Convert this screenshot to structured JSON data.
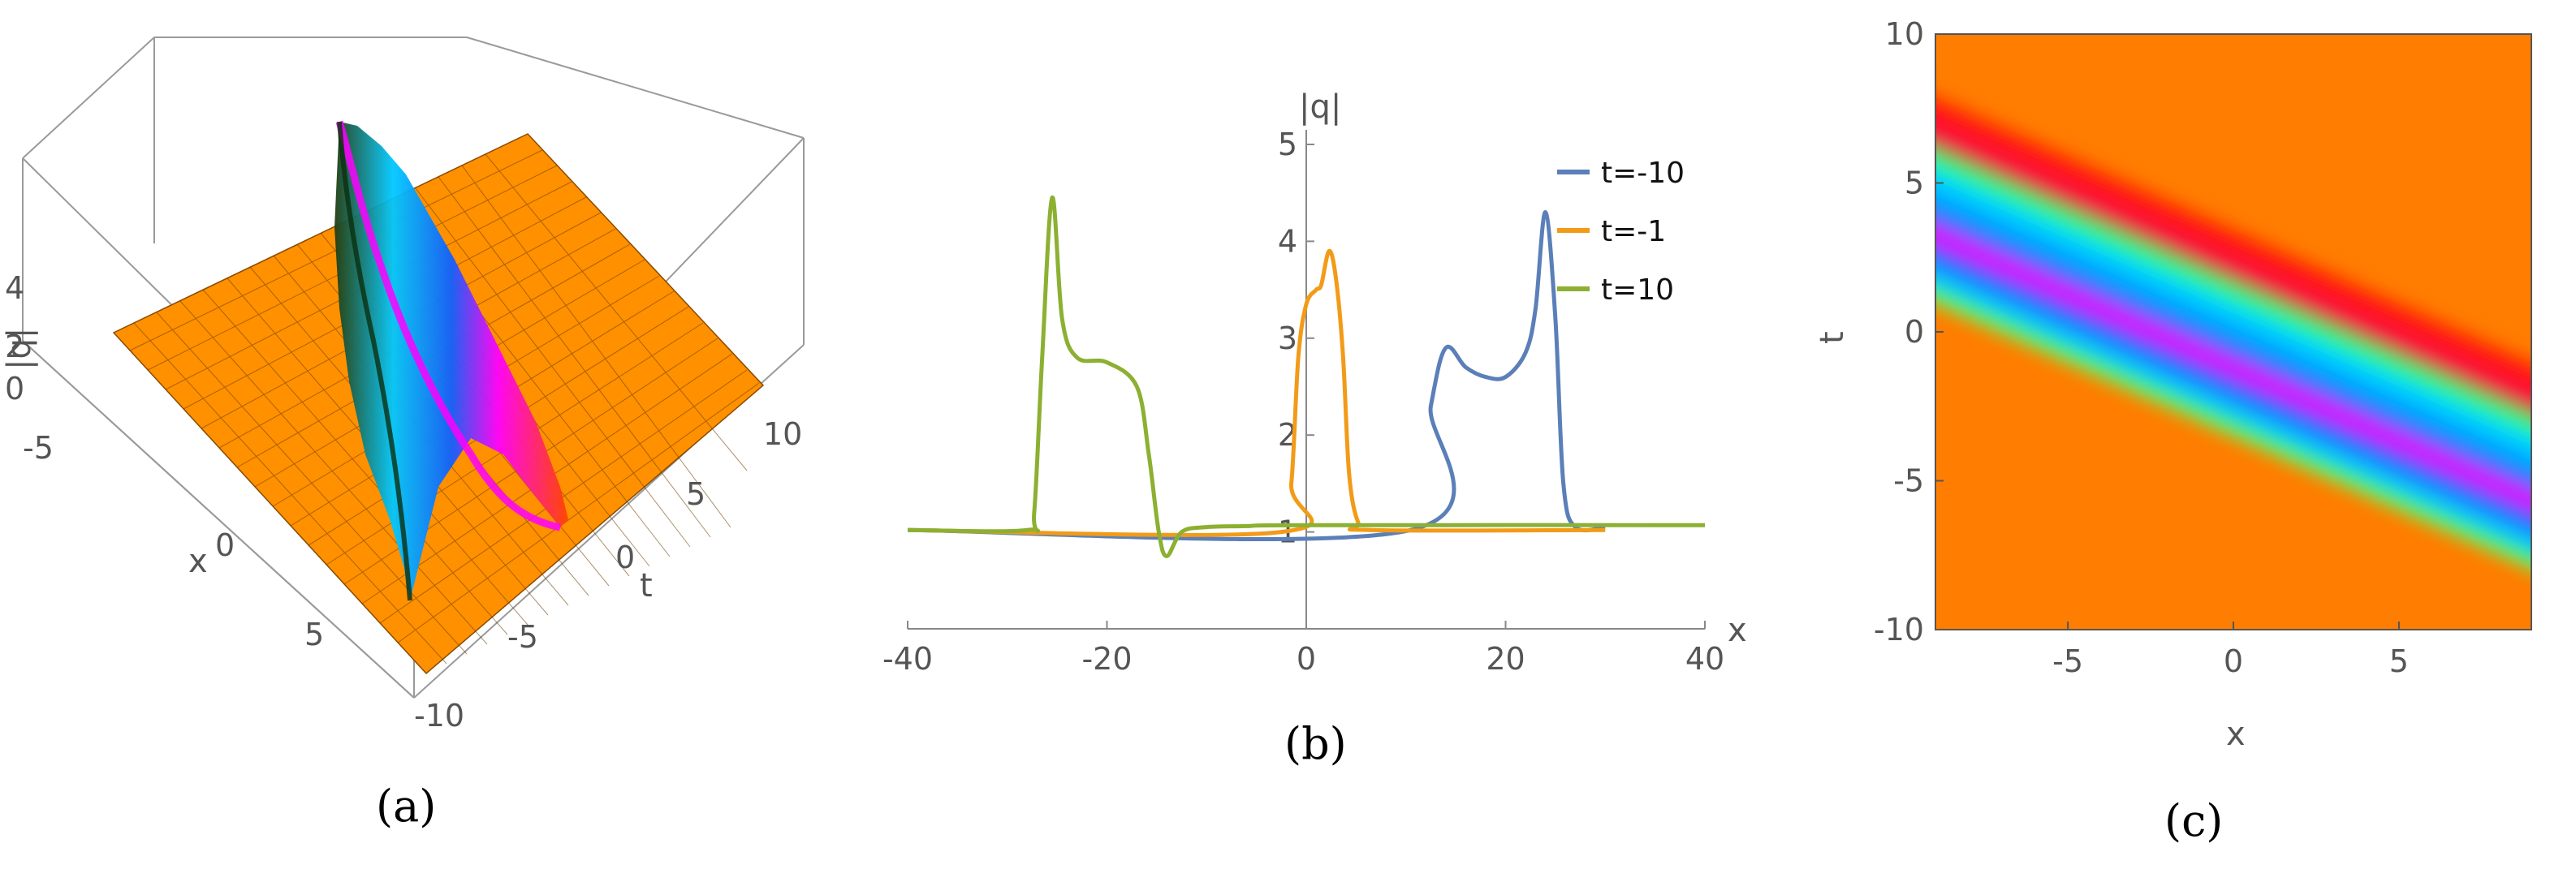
{
  "chart_data": [
    {
      "panel": "(a)",
      "type": "surface",
      "zlabel": "|q|",
      "xlabel": "x",
      "ylabel": "t",
      "z_ticks": [
        "0",
        "2",
        "4"
      ],
      "x_ticks": [
        "-5",
        "0",
        "5"
      ],
      "t_ticks": [
        "-10",
        "-5",
        "0",
        "5",
        "10"
      ],
      "background_level": 1,
      "peak_level": 4.5,
      "colors": {
        "surface": "#ff9900",
        "wave_high": "#ff00ff",
        "wave_mid": "#00c8ff",
        "grid": "#333333"
      }
    },
    {
      "panel": "(b)",
      "type": "line",
      "xlabel": "x",
      "ylabel": "|q|",
      "xlim": [
        -40,
        40
      ],
      "ylim": [
        0,
        5
      ],
      "x_ticks": [
        "-40",
        "-20",
        "0",
        "20",
        "40"
      ],
      "y_ticks": [
        "1",
        "2",
        "3",
        "4",
        "5"
      ],
      "legend_position": "top-right",
      "series": [
        {
          "name": "t=-10",
          "color": "#5b7fb8",
          "x": [
            -40,
            10.5,
            12.5,
            14,
            16,
            18,
            20,
            22,
            23,
            24,
            25,
            25.8,
            27,
            30
          ],
          "y": [
            1.02,
            1.02,
            2.3,
            2.9,
            2.7,
            2.6,
            2.6,
            2.85,
            3.3,
            4.3,
            3.2,
            1.5,
            1.05,
            1.05
          ]
        },
        {
          "name": "t=-1",
          "color": "#f29b18",
          "x": [
            -40,
            -2.5,
            -1.5,
            -0.8,
            0,
            1,
            1.5,
            2.3,
            3,
            3.7,
            4.3,
            5.2,
            6.5,
            30
          ],
          "y": [
            1.02,
            1.0,
            1.5,
            2.8,
            3.35,
            3.5,
            3.55,
            3.9,
            3.6,
            2.8,
            1.6,
            1.1,
            1.02,
            1.02
          ]
        },
        {
          "name": "t=10",
          "color": "#8cb031",
          "x": [
            -40,
            -28,
            -27.3,
            -26.5,
            -25.5,
            -24.5,
            -23,
            -20,
            -17,
            -15.8,
            -14.8,
            -14,
            -12.5,
            -10,
            -6,
            0,
            40
          ],
          "y": [
            1.02,
            1.02,
            1.2,
            2.8,
            4.45,
            3.2,
            2.8,
            2.75,
            2.5,
            1.8,
            1.0,
            0.75,
            1.0,
            1.05,
            1.06,
            1.07,
            1.07
          ]
        }
      ]
    },
    {
      "panel": "(c)",
      "type": "heatmap",
      "xlabel": "x",
      "ylabel": "t",
      "xlim": [
        -9,
        9
      ],
      "ylim": [
        -10,
        10
      ],
      "x_ticks": [
        "-5",
        "0",
        "5"
      ],
      "y_ticks": [
        "-10",
        "-5",
        "0",
        "5",
        "10"
      ],
      "colors": {
        "background": "#ff8800",
        "band_edge": "#ff2a00",
        "band_mid": "#00b4ff",
        "band_core": "#ff00ff",
        "band_fringe": "#33ff33"
      }
    }
  ],
  "captions": {
    "a": "(a)",
    "b": "(b)",
    "c": "(c)"
  }
}
